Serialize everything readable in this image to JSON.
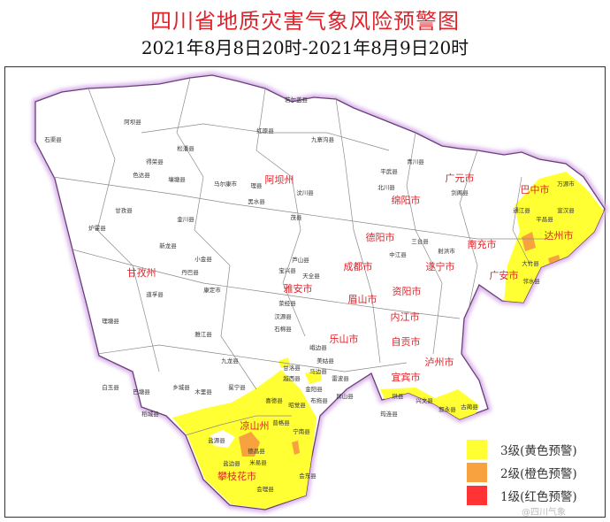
{
  "title": "四川省地质灾害气象风险预警图",
  "subtitle": "2021年8月8日20时-2021年8月9日20时",
  "colors": {
    "level3": "#ffff33",
    "level2": "#f7a23e",
    "level1": "#ff3333",
    "boundary": "#c9a0dc",
    "city_label": "#e0232a"
  },
  "legend": [
    {
      "label": "3级(黄色预警)",
      "color": "#ffff33"
    },
    {
      "label": "2级(橙色预警)",
      "color": "#f7a23e"
    },
    {
      "label": "1级(红色预警)",
      "color": "#ff3333"
    }
  ],
  "cities": [
    "甘孜州",
    "阿坝州",
    "绵阳市",
    "广元市",
    "巴中市",
    "达州市",
    "南充市",
    "广安市",
    "遂宁市",
    "德阳市",
    "成都市",
    "雅安市",
    "眉山市",
    "资阳市",
    "内江市",
    "乐山市",
    "自贡市",
    "宜宾市",
    "泸州市",
    "凉山州",
    "攀枝花市"
  ],
  "counties": [
    "石渠县",
    "色达县",
    "甘孜县",
    "炉霍县",
    "新龙县",
    "道孚县",
    "理塘县",
    "雅江县",
    "康定市",
    "丹巴县",
    "金川县",
    "小金县",
    "马尔康市",
    "黑水县",
    "理县",
    "茂县",
    "汶川县",
    "平武县",
    "北川县",
    "青川县",
    "剑阁县",
    "三台县",
    "中江县",
    "射洪市",
    "宝兴县",
    "天全县",
    "芦山县",
    "荥经县",
    "汉源县",
    "石棉县",
    "九龙县",
    "木里县",
    "冕宁县",
    "越西县",
    "甘洛县",
    "喜德县",
    "昭觉县",
    "美姑县",
    "金阳县",
    "布拖县",
    "普格县",
    "德昌县",
    "盐源县",
    "米易县",
    "会理县",
    "会东县",
    "宁南县",
    "盐边县",
    "珙县",
    "兴文县",
    "叙永县",
    "古蔺县",
    "万源市",
    "通江县",
    "平昌县",
    "宣汉县",
    "大竹县",
    "邻水县",
    "峨边县",
    "马边县",
    "雷波县",
    "屏山县",
    "筠连县",
    "白玉县",
    "巴塘县",
    "乡城县",
    "稻城县",
    "得荣县",
    "红原县",
    "若尔盖县",
    "九寨沟县",
    "松潘县",
    "壤塘县",
    "阿坝县"
  ],
  "watermark": "@四川气象"
}
